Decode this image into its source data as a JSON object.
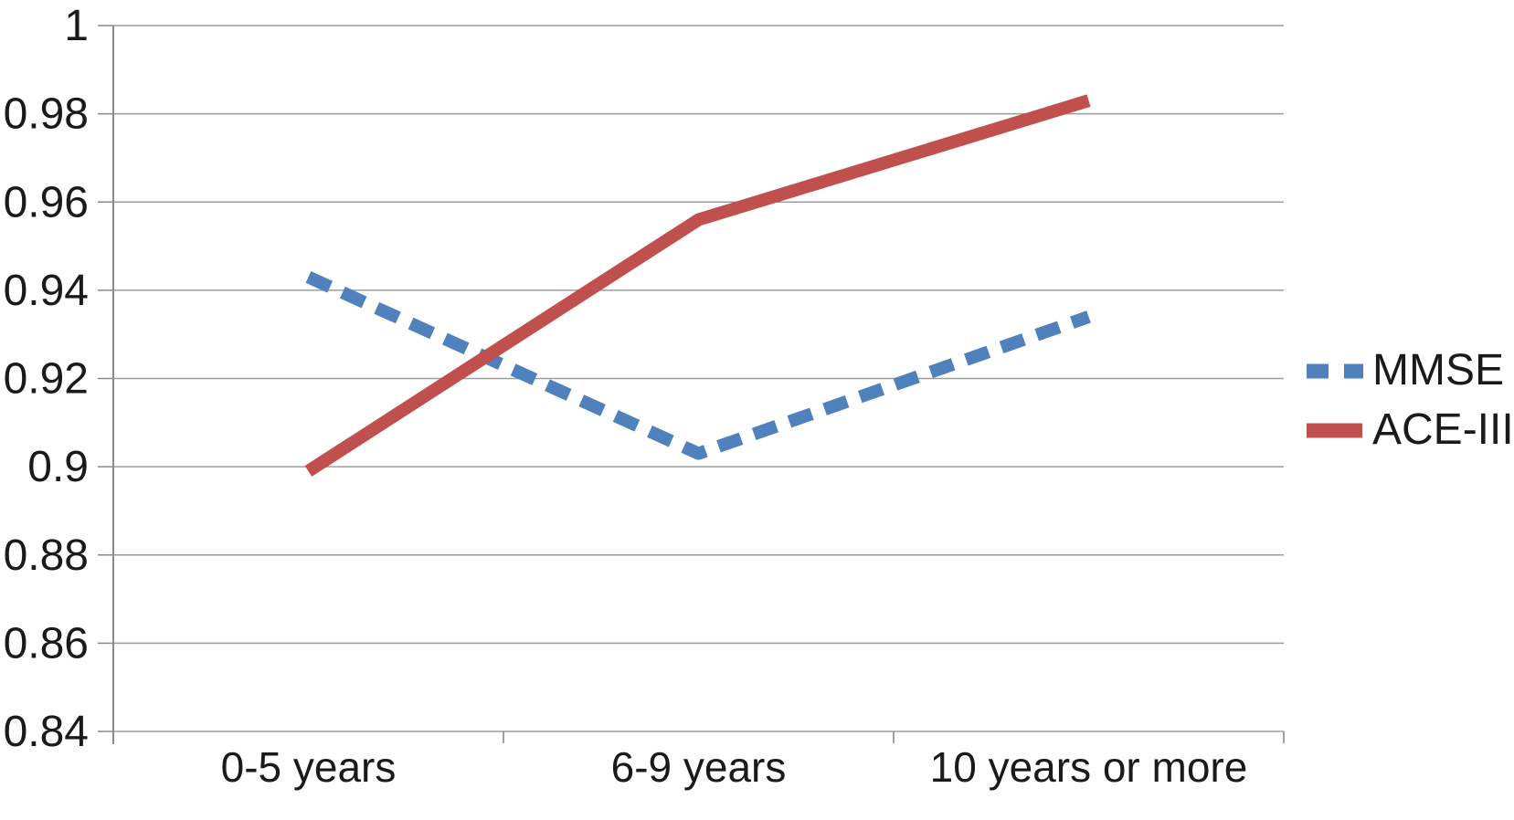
{
  "chart_data": {
    "type": "line",
    "categories": [
      "0-5 years",
      "6-9 years",
      "10 years or more"
    ],
    "series": [
      {
        "name": "MMSE",
        "values": [
          0.943,
          0.903,
          0.934
        ],
        "color": "#4F81BD",
        "style": "dashed"
      },
      {
        "name": "ACE-III",
        "values": [
          0.899,
          0.956,
          0.983
        ],
        "color": "#C0504D",
        "style": "solid"
      }
    ],
    "title": "",
    "xlabel": "",
    "ylabel": "",
    "ylim": [
      0.84,
      1.0
    ],
    "ytick_step": 0.02,
    "ytick_labels": [
      "1",
      "0.98",
      "0.96",
      "0.94",
      "0.92",
      "0.9",
      "0.88",
      "0.86",
      "0.84"
    ],
    "grid": true,
    "legend_position": "right",
    "colors": {
      "gridline": "#9D9D9D",
      "axis": "#8A8A8A",
      "text": "#1a1a1a",
      "background": "#FFFFFF"
    }
  }
}
